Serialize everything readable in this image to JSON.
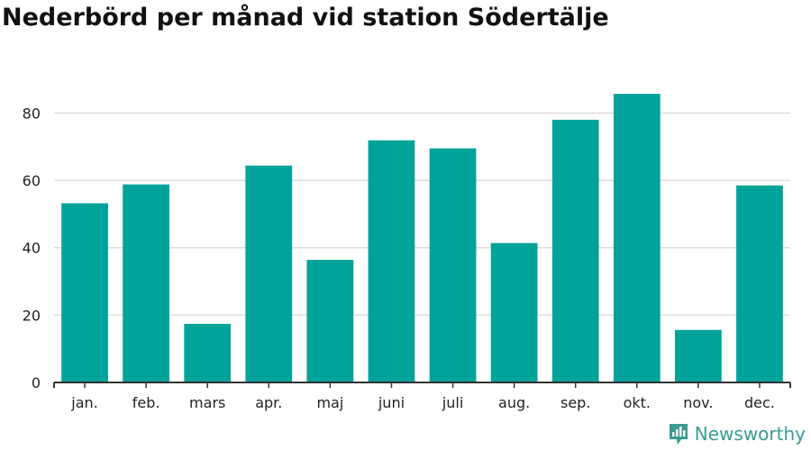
{
  "title": "Nederbörd per månad vid station Södertälje",
  "brand": {
    "name": "Newsworthy",
    "icon": "newsworthy-logo-icon"
  },
  "colors": {
    "bar": "#00a39a",
    "grid": "#dddddd",
    "axis": "#333333",
    "brand": "#3a9b93"
  },
  "chart_data": {
    "type": "bar",
    "title": "Nederbörd per månad vid station Södertälje",
    "xlabel": "",
    "ylabel": "",
    "categories": [
      "jan.",
      "feb.",
      "mars",
      "apr.",
      "maj",
      "juni",
      "juli",
      "aug.",
      "sep.",
      "okt.",
      "nov.",
      "dec."
    ],
    "values": [
      53.2,
      58.8,
      17.4,
      64.4,
      36.4,
      71.9,
      69.5,
      41.4,
      78.0,
      85.7,
      15.6,
      58.5
    ],
    "ylim": [
      0,
      90
    ],
    "yticks": [
      0,
      20,
      40,
      60,
      80
    ],
    "grid": true,
    "legend": "none"
  }
}
